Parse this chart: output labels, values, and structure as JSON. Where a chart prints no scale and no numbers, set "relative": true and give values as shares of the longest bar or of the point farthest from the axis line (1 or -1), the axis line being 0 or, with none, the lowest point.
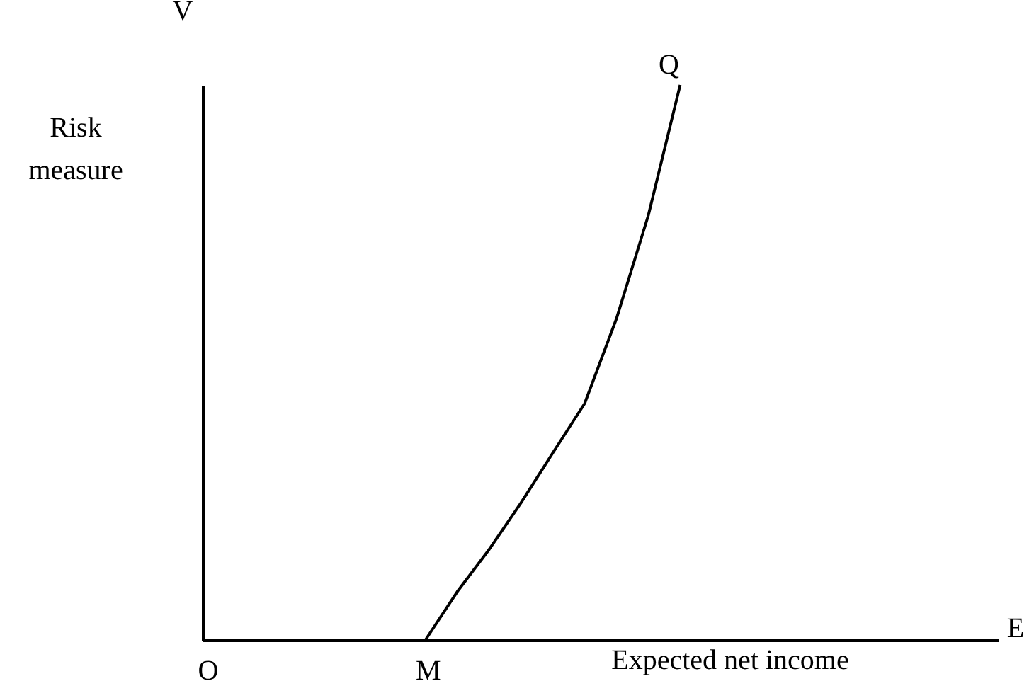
{
  "chart_data": {
    "type": "line",
    "relative": true,
    "xlabel": "Expected net income",
    "ylabel": "Risk measure",
    "categories": [
      null,
      null,
      null,
      null,
      null,
      null,
      null,
      null,
      null,
      null,
      null,
      null,
      null,
      null,
      null,
      null,
      null,
      null,
      null,
      null,
      null,
      null,
      null,
      null,
      null,
      null
    ],
    "series": [
      {
        "color": "#000000",
        "values": [
          null,
          null,
          null,
          null,
          null,
          null,
          null,
          0,
          0.087,
          0.163,
          0.247,
          0.337,
          0.426,
          0.579,
          0.765,
          1,
          null,
          null,
          null,
          null,
          null,
          null,
          null,
          null,
          null,
          null
        ]
      }
    ],
    "annotations": [
      "V",
      "E",
      "O",
      "M",
      "Q"
    ],
    "grid": false,
    "marker": "none",
    "line_style": "solid"
  }
}
